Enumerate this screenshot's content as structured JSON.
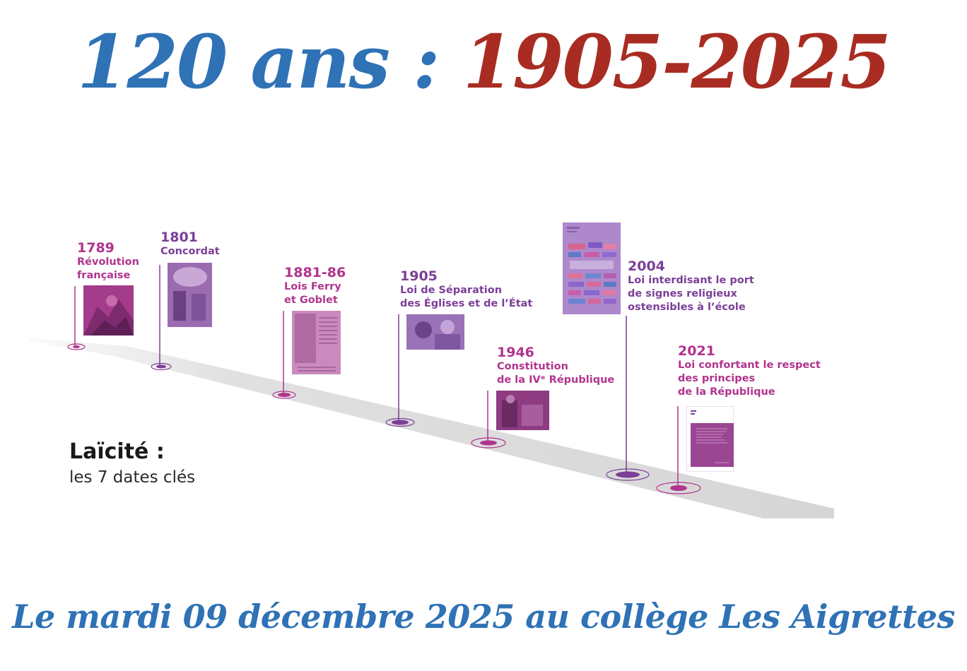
{
  "header": {
    "title_part1": "120 ans :",
    "title_part2": "1905-2025",
    "color_blue": "#2f72b6",
    "color_red": "#a92c22"
  },
  "legend": {
    "title": "Laïcité :",
    "subtitle": "les 7 dates clés"
  },
  "events": [
    {
      "year": "1789",
      "label": "Révolution\nfrançaise",
      "color": "#b1348e"
    },
    {
      "year": "1801",
      "label": "Concordat",
      "color": "#7b3f97"
    },
    {
      "year": "1881-86",
      "label": "Lois Ferry\net Goblet",
      "color": "#b1348e"
    },
    {
      "year": "1905",
      "label": "Loi de Séparation\ndes Églises et de l’État",
      "color": "#7b3f97"
    },
    {
      "year": "1946",
      "label": "Constitution\nde la IVᵉ République",
      "color": "#b1348e"
    },
    {
      "year": "2004",
      "label": "Loi interdisant le port\nde signes religieux\nostensibles à l’école",
      "color": "#7b3f97"
    },
    {
      "year": "2021",
      "label": "Loi confortant le respect\ndes principes\nde la République",
      "color": "#b1348e"
    }
  ],
  "footer": {
    "text": "Le mardi 09 décembre 2025 au collège Les Aigrettes"
  }
}
